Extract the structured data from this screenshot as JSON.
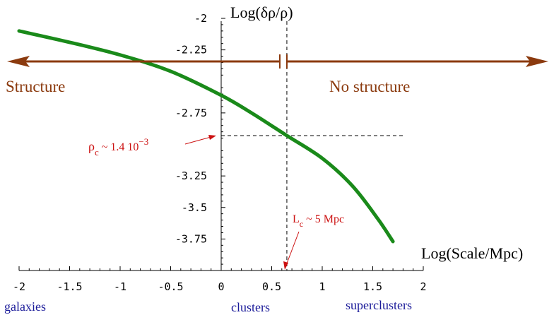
{
  "chart_data": {
    "type": "line",
    "ylabel": "Log(δρ/ρ)",
    "xlabel": "Log(Scale/Mpc)",
    "xlim": [
      -2,
      2
    ],
    "ylim": [
      -4.0,
      -2.0
    ],
    "x_ticks": [
      "-2",
      "-1.5",
      "-1",
      "-0.5",
      "0",
      "0.5",
      "1",
      "1.5",
      "2"
    ],
    "x_tick_values": [
      -2,
      -1.5,
      -1,
      -0.5,
      0,
      0.5,
      1,
      1.5,
      2
    ],
    "y_ticks": [
      "-2",
      "-2.25",
      "-2.75",
      "-3.25",
      "-3.5",
      "-3.75"
    ],
    "y_tick_values": [
      -2,
      -2.25,
      -2.75,
      -3.25,
      -3.5,
      -3.75
    ],
    "series": [
      {
        "color": "#1a8a1a",
        "x": [
          -2.0,
          -1.5,
          -1.0,
          -0.5,
          0.0,
          0.3,
          0.65,
          1.0,
          1.3,
          1.55,
          1.7
        ],
        "y": [
          -2.1,
          -2.19,
          -2.29,
          -2.42,
          -2.61,
          -2.75,
          -2.93,
          -3.11,
          -3.33,
          -3.59,
          -3.77
        ]
      }
    ],
    "critical": {
      "x": 0.65,
      "y": -2.93,
      "rho_label": "ρ",
      "rho_sub": "c",
      "rho_value": " ~ 1.4 10",
      "rho_exp": "−3",
      "L_label": "L",
      "L_sub": "c",
      "L_value": " ~ 5 Mpc"
    },
    "structure_label": "Structure",
    "no_structure_label": "No structure",
    "scale_labels": {
      "galaxies": "galaxies",
      "clusters": "clusters",
      "superclusters": "superclusters"
    },
    "colors": {
      "curve": "#1a8a1a",
      "arrows": "#8b3a0e",
      "annotations": "#cc1111",
      "scale_labels": "#1a1a99"
    }
  }
}
